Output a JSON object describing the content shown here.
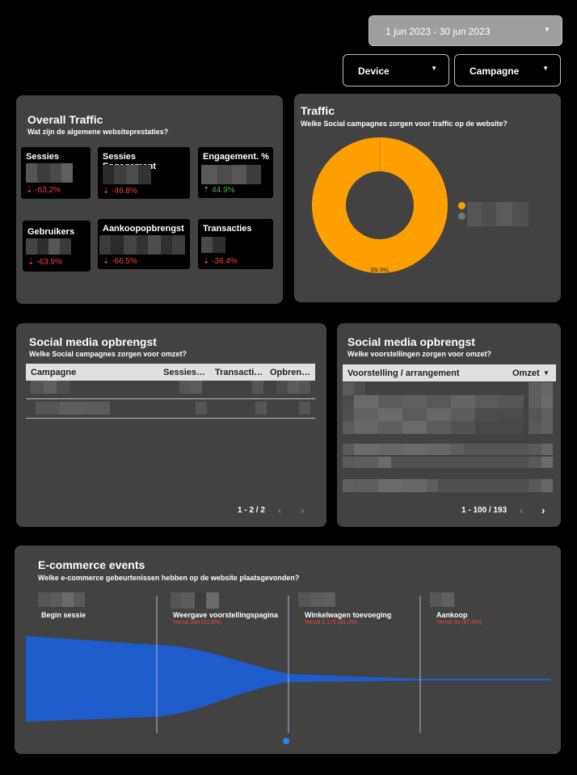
{
  "filters": {
    "date_range": "1 jun 2023 - 30 jun 2023",
    "device": "Device",
    "campaign": "Campagne"
  },
  "colors": {
    "background": "#000000",
    "panel": "#424242",
    "accent": "#ffa000",
    "funnel": "#1e5ccc",
    "down": "#f44336",
    "up": "#4caf50"
  },
  "overall_traffic": {
    "title": "Overall Traffic",
    "subtitle": "Wat zijn de algemene websiteprestaties?",
    "cards": [
      {
        "label": "Sessies",
        "delta": "-63.2%",
        "direction": "down"
      },
      {
        "label": "Sessies Engagement",
        "delta": "-46.8%",
        "direction": "down"
      },
      {
        "label": "Engagement. %",
        "delta": "44.9%",
        "direction": "up"
      },
      {
        "label": "Gebruikers",
        "delta": "-63.9%",
        "direction": "down"
      },
      {
        "label": "Aankoopopbrengst",
        "delta": "-66.5%",
        "direction": "down"
      },
      {
        "label": "Transacties",
        "delta": "-36.4%",
        "direction": "down"
      }
    ]
  },
  "traffic": {
    "title": "Traffic",
    "subtitle": "Welke Social campagnes zorgen voor traffic op de website?",
    "slice_label": "99,9%"
  },
  "chart_data": {
    "type": "pie",
    "values": [
      99.9,
      0.1
    ],
    "labels": [
      "99,9%",
      ""
    ],
    "colors": [
      "#ffa000",
      "#757575"
    ],
    "legend": "right"
  },
  "social_campaigns": {
    "title": "Social media opbrengst",
    "subtitle": "Welke Social campagnes zorgen voor omzet?",
    "columns": [
      "Campagne",
      "Sessies…",
      "Transacti…",
      "Opbren…"
    ],
    "pager": "1 - 2 / 2"
  },
  "social_shows": {
    "title": "Social media opbrengst",
    "subtitle": "Welke voorstellingen zorgen voor omzet?",
    "columns": [
      "Voorstelling / arrangement",
      "Omzet"
    ],
    "pager": "1 - 100 / 193"
  },
  "ecommerce": {
    "title": "E-commerce events",
    "subtitle": "Welke e-commerce gebeurtenissen hebben op de website plaatsgevonden?",
    "stages": [
      {
        "label": "Begin sessie",
        "drop": ""
      },
      {
        "label": "Weergave voorstellingspagina",
        "drop": "Verval 360 (21.8%)"
      },
      {
        "label": "Winkelwagen toevoeging",
        "drop": "Verval 1.175 (91.3%)"
      },
      {
        "label": "Aankoop",
        "drop": "Verval 99 (87.6%)"
      }
    ]
  }
}
